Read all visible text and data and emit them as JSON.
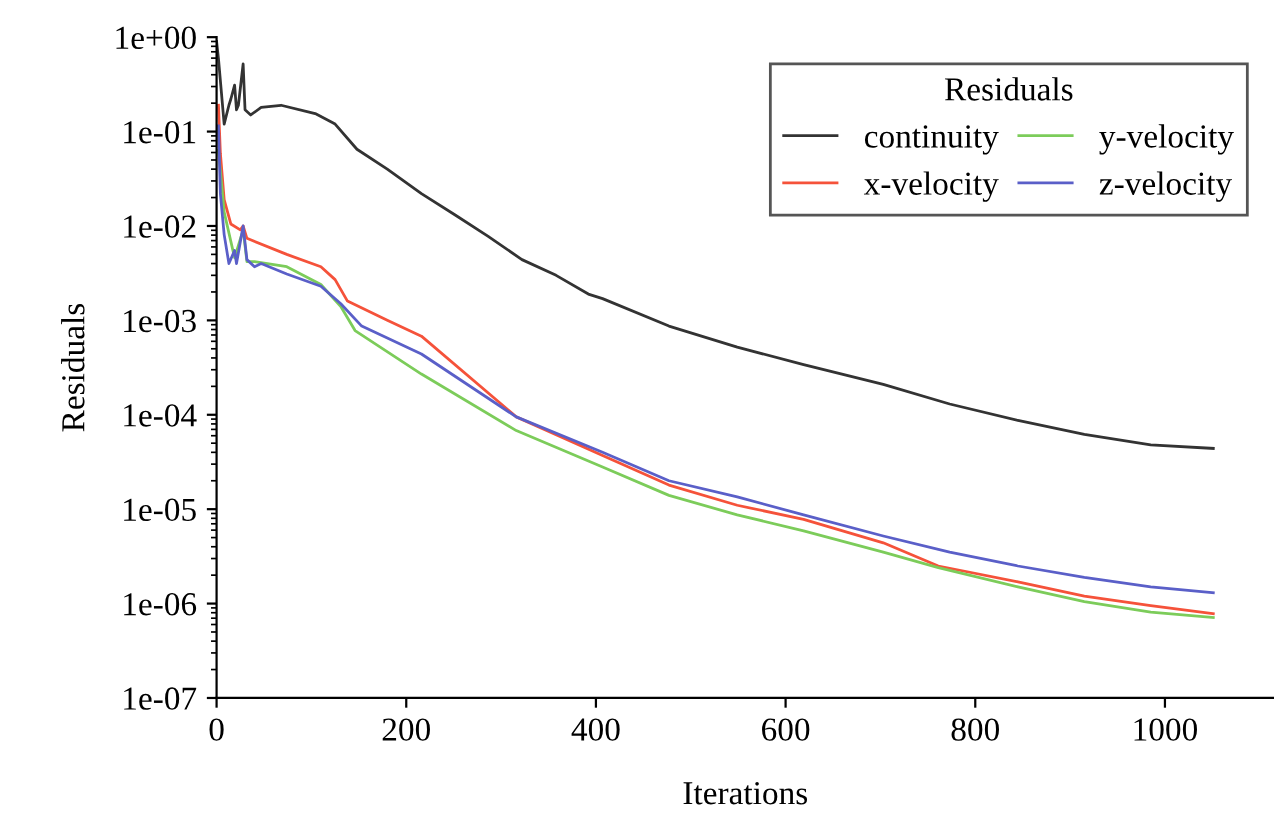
{
  "chart_data": {
    "type": "line",
    "xlabel": "Iterations",
    "ylabel": "Residuals",
    "legend_title": "Residuals",
    "legend": "top right",
    "log": "y",
    "grid": false,
    "xlim": [
      0,
      1115
    ],
    "xticks": [
      0,
      200,
      400,
      600,
      800,
      1000
    ],
    "ylim": [
      1e-07,
      1
    ],
    "yticks": [
      {
        "value": 1,
        "label": "1e+00"
      },
      {
        "value": 0.1,
        "label": "1e-01"
      },
      {
        "value": 0.01,
        "label": "1e-02"
      },
      {
        "value": 0.001,
        "label": "1e-03"
      },
      {
        "value": 0.0001,
        "label": "1e-04"
      },
      {
        "value": 1e-05,
        "label": "1e-05"
      },
      {
        "value": 1e-06,
        "label": "1e-06"
      },
      {
        "value": 1e-07,
        "label": "1e-07"
      }
    ],
    "series": [
      {
        "name": "continuity",
        "color": "#333333",
        "x": [
          0,
          2,
          8,
          13,
          15,
          19,
          21,
          23,
          28,
          30,
          36,
          47,
          68,
          104,
          125,
          148,
          180,
          216,
          252,
          286,
          322,
          358,
          392,
          407,
          477,
          549,
          619,
          703,
          773,
          845,
          915,
          985,
          1051
        ],
        "values": [
          0.9,
          0.59,
          0.12,
          0.19,
          0.22,
          0.31,
          0.17,
          0.19,
          0.52,
          0.17,
          0.15,
          0.18,
          0.19,
          0.155,
          0.12,
          0.065,
          0.04,
          0.022,
          0.013,
          0.0078,
          0.0044,
          0.003,
          0.0019,
          0.0017,
          0.00087,
          0.00052,
          0.00034,
          0.00021,
          0.00013,
          8.7e-05,
          6.2e-05,
          4.8e-05,
          4.4e-05
        ]
      },
      {
        "name": "x-velocity",
        "color": "#f5523a",
        "x": [
          2,
          4,
          8,
          15,
          25,
          28,
          32,
          74,
          110,
          125,
          138,
          180,
          216,
          316,
          407,
          477,
          549,
          619,
          703,
          761,
          845,
          915,
          985,
          1051
        ],
        "values": [
          0.19,
          0.059,
          0.019,
          0.0105,
          0.0091,
          0.01,
          0.0074,
          0.005,
          0.0037,
          0.0027,
          0.0016,
          0.001,
          0.00068,
          9.5e-05,
          3.7e-05,
          1.8e-05,
          1.1e-05,
          7.8e-06,
          4.4e-06,
          2.5e-06,
          1.7e-06,
          1.2e-06,
          9.5e-07,
          7.8e-07
        ]
      },
      {
        "name": "y-velocity",
        "color": "#7ccc5a",
        "x": [
          2,
          8,
          19,
          28,
          32,
          40,
          74,
          110,
          131,
          146,
          216,
          316,
          407,
          477,
          549,
          619,
          703,
          761,
          845,
          915,
          985,
          1051
        ],
        "values": [
          0.063,
          0.014,
          0.0046,
          0.0091,
          0.0042,
          0.0042,
          0.0037,
          0.0024,
          0.0014,
          0.00078,
          0.00027,
          6.8e-05,
          2.8e-05,
          1.4e-05,
          8.7e-06,
          5.9e-06,
          3.5e-06,
          2.4e-06,
          1.5e-06,
          1.05e-06,
          8.1e-07,
          7.1e-07
        ]
      },
      {
        "name": "z-velocity",
        "color": "#5a5fc8",
        "x": [
          2,
          4,
          8,
          13,
          19,
          21,
          28,
          32,
          40,
          47,
          74,
          110,
          131,
          153,
          216,
          316,
          407,
          477,
          549,
          619,
          703,
          773,
          845,
          915,
          985,
          1051
        ],
        "values": [
          0.115,
          0.022,
          0.0081,
          0.004,
          0.0055,
          0.004,
          0.01,
          0.0044,
          0.0037,
          0.004,
          0.0031,
          0.0023,
          0.0015,
          0.00087,
          0.00044,
          9.5e-05,
          4e-05,
          2e-05,
          1.35e-05,
          8.7e-06,
          5.2e-06,
          3.5e-06,
          2.5e-06,
          1.9e-06,
          1.5e-06,
          1.3e-06
        ]
      }
    ]
  }
}
